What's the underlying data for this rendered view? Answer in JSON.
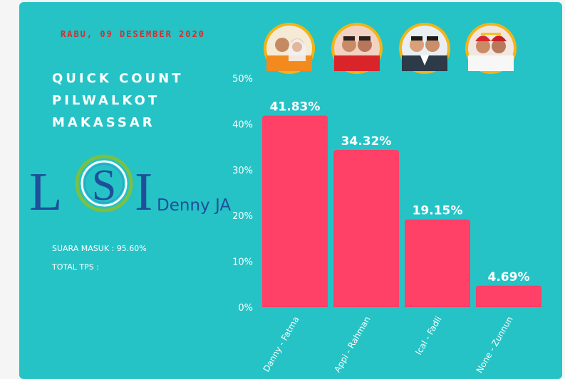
{
  "header": {
    "date": "RABU, 09 DESEMBER 2020",
    "title_lines": [
      "QUICK COUNT",
      "PILWALKOT",
      "MAKASSAR"
    ]
  },
  "logo": {
    "letters": [
      "L",
      "S",
      "I"
    ],
    "subtitle": "Denny JA"
  },
  "info": {
    "suara_masuk": "SUARA MASUK : 95.60%",
    "total_tps": "TOTAL TPS :"
  },
  "colors": {
    "background": "#25c3c6",
    "bar": "#ff4168",
    "date": "#d92b2b",
    "logo_blue": "#1f4e9a",
    "avatar_ring": "#f3b416"
  },
  "candidate_icons": [
    "candidate-pair-photo-icon",
    "candidate-pair-photo-icon",
    "candidate-pair-photo-icon",
    "candidate-pair-photo-icon"
  ],
  "chart_data": {
    "type": "bar",
    "title": "QUICK COUNT PILWALKOT MAKASSAR",
    "categories": [
      "Danny - Fatma",
      "Appi - Rahman",
      "Ical - Fadli",
      "None - Zunnun"
    ],
    "values": [
      41.83,
      34.32,
      19.15,
      4.69
    ],
    "value_labels": [
      "41.83%",
      "34.32%",
      "19.15%",
      "4.69%"
    ],
    "y_ticks": [
      "0%",
      "10%",
      "20%",
      "30%",
      "40%",
      "50%"
    ],
    "ylim": [
      0,
      50
    ],
    "xlabel": "",
    "ylabel": "",
    "grid": false
  }
}
